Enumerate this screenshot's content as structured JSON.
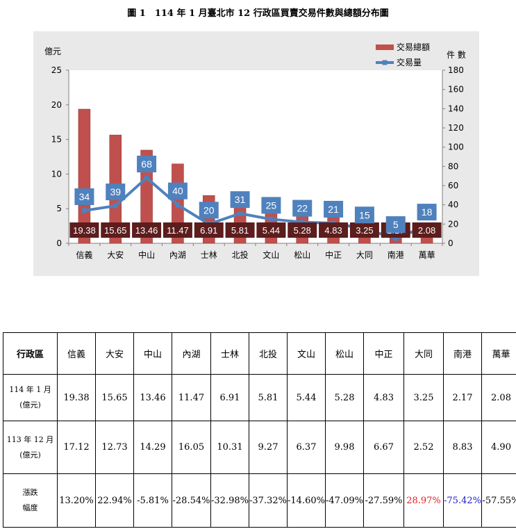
{
  "title": "圖 1　114 年 1 月臺北市 12 行政區買賣交易件數與總額分布圖",
  "chart_data": {
    "type": "bar+line",
    "categories": [
      "信義",
      "大安",
      "中山",
      "內湖",
      "士林",
      "北投",
      "文山",
      "松山",
      "中正",
      "大同",
      "南港",
      "萬華"
    ],
    "series": [
      {
        "name": "交易總額",
        "type": "bar",
        "axis": "left",
        "values": [
          19.38,
          15.65,
          13.46,
          11.47,
          6.91,
          5.81,
          5.44,
          5.28,
          4.83,
          3.25,
          2.17,
          2.08
        ],
        "color": "#c0504d"
      },
      {
        "name": "交易量",
        "type": "line",
        "axis": "right",
        "values": [
          34,
          39,
          68,
          40,
          20,
          31,
          25,
          22,
          21,
          15,
          5,
          18
        ],
        "color": "#4f81bd"
      }
    ],
    "ylabel_left": "億元",
    "ylabel_right": "件 數",
    "ylim_left": [
      0,
      25
    ],
    "yticks_left": [
      0,
      5,
      10,
      15,
      20,
      25
    ],
    "ylim_right": [
      0,
      180
    ],
    "yticks_right": [
      0,
      20,
      40,
      60,
      80,
      100,
      120,
      140,
      160,
      180
    ],
    "legend_position": "top-right",
    "grid": false,
    "bar_label_bg": "#5c1d1d",
    "line_label_bg": "#4f81bd"
  },
  "table": {
    "header_label": "行政區",
    "districts": [
      "信義",
      "大安",
      "中山",
      "內湖",
      "士林",
      "北投",
      "文山",
      "松山",
      "中正",
      "大同",
      "南港",
      "萬華"
    ],
    "rows": [
      {
        "label_line1": "114 年 1 月",
        "label_line2": "(億元)",
        "values": [
          "19.38",
          "15.65",
          "13.46",
          "11.47",
          "6.91",
          "5.81",
          "5.44",
          "5.28",
          "4.83",
          "3.25",
          "2.17",
          "2.08"
        ]
      },
      {
        "label_line1": "113 年 12 月",
        "label_line2": "(億元)",
        "values": [
          "17.12",
          "12.73",
          "14.29",
          "16.05",
          "10.31",
          "9.27",
          "6.37",
          "9.98",
          "6.67",
          "2.52",
          "8.83",
          "4.90"
        ]
      },
      {
        "label_line1": "漲跌",
        "label_line2": "幅度",
        "values": [
          "13.20%",
          "22.94%",
          "-5.81%",
          "-28.54%",
          "-32.98%",
          "-37.32%",
          "-14.60%",
          "-47.09%",
          "-27.59%",
          "28.97%",
          "-75.42%",
          "-57.55%"
        ]
      }
    ],
    "highlight_colors": {
      "up": "#e5191e",
      "down_blue": "#1a1acc"
    }
  }
}
